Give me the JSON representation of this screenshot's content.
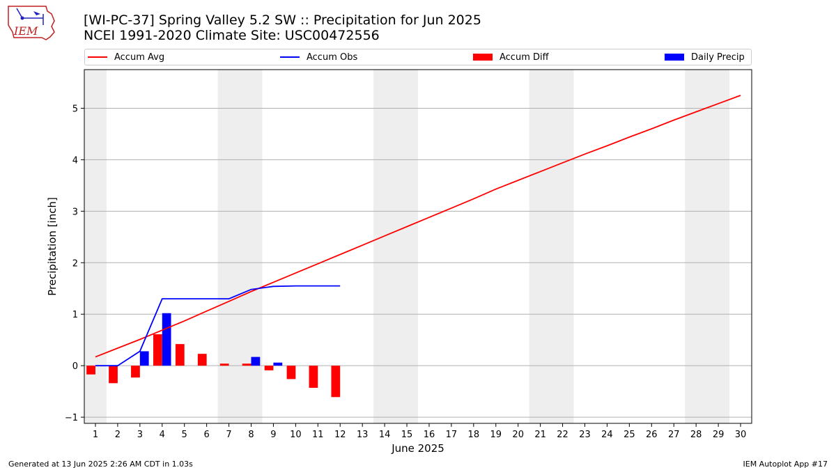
{
  "header": {
    "title_line1": "[WI-PC-37] Spring Valley 5.2 SW :: Precipitation for Jun 2025",
    "title_line2": "NCEI 1991-2020 Climate Site: USC00472556",
    "logo_text": "IEM"
  },
  "footer": {
    "left": "Generated at 13 Jun 2025 2:26 AM CDT in 1.03s",
    "right": "IEM Autoplot App #17"
  },
  "colors": {
    "avg": "#ff0000",
    "obs": "#0000ff",
    "diff": "#ff0000",
    "daily": "#0000ff",
    "weekend_band": "#eeeeee",
    "grid": "#b0b0b0"
  },
  "legend": [
    "Accum Avg",
    "Accum Obs",
    "Accum Diff",
    "Daily Precip"
  ],
  "chart_data": {
    "type": "bar",
    "xlabel": "June 2025",
    "ylabel": "Precipitation [inch]",
    "x": [
      1,
      2,
      3,
      4,
      5,
      6,
      7,
      8,
      9,
      10,
      11,
      12,
      13,
      14,
      15,
      16,
      17,
      18,
      19,
      20,
      21,
      22,
      23,
      24,
      25,
      26,
      27,
      28,
      29,
      30
    ],
    "xlim": [
      0.5,
      30.5
    ],
    "ylim": [
      -1.12,
      5.75
    ],
    "yticks": [
      -1,
      0,
      1,
      2,
      3,
      4,
      5
    ],
    "grid": "horizontal",
    "legend_position": "top",
    "weekend_bands": [
      [
        0.5,
        1.5
      ],
      [
        6.5,
        8.5
      ],
      [
        13.5,
        15.5
      ],
      [
        20.5,
        22.5
      ],
      [
        27.5,
        29.5
      ]
    ],
    "series": [
      {
        "name": "Accum Avg",
        "type": "line",
        "x": [
          1,
          2,
          3,
          4,
          5,
          6,
          7,
          8,
          9,
          10,
          11,
          12,
          13,
          14,
          15,
          16,
          17,
          18,
          19,
          20,
          21,
          22,
          23,
          24,
          25,
          26,
          27,
          28,
          29,
          30
        ],
        "values": [
          0.17,
          0.34,
          0.51,
          0.69,
          0.87,
          1.06,
          1.25,
          1.44,
          1.62,
          1.8,
          1.98,
          2.16,
          2.34,
          2.52,
          2.7,
          2.88,
          3.06,
          3.24,
          3.43,
          3.6,
          3.77,
          3.94,
          4.11,
          4.27,
          4.44,
          4.6,
          4.77,
          4.93,
          5.09,
          5.25
        ]
      },
      {
        "name": "Accum Obs",
        "type": "line",
        "x": [
          1,
          2,
          3,
          4,
          5,
          6,
          7,
          8,
          9,
          10,
          11,
          12
        ],
        "values": [
          0,
          0,
          0.28,
          1.3,
          1.3,
          1.3,
          1.3,
          1.48,
          1.54,
          1.55,
          1.55,
          1.55
        ]
      },
      {
        "name": "Accum Diff",
        "type": "bar",
        "x": [
          1,
          2,
          3,
          4,
          5,
          6,
          7,
          8,
          9,
          10,
          11,
          12
        ],
        "values": [
          -0.17,
          -0.34,
          -0.23,
          0.61,
          0.42,
          0.23,
          0.04,
          0.04,
          -0.09,
          -0.26,
          -0.43,
          -0.61
        ]
      },
      {
        "name": "Daily Precip",
        "type": "bar",
        "x": [
          1,
          2,
          3,
          4,
          5,
          6,
          7,
          8,
          9,
          10,
          11,
          12
        ],
        "values": [
          0,
          0,
          0.28,
          1.02,
          0,
          0,
          0,
          0.17,
          0.06,
          0,
          0,
          0
        ]
      }
    ]
  }
}
